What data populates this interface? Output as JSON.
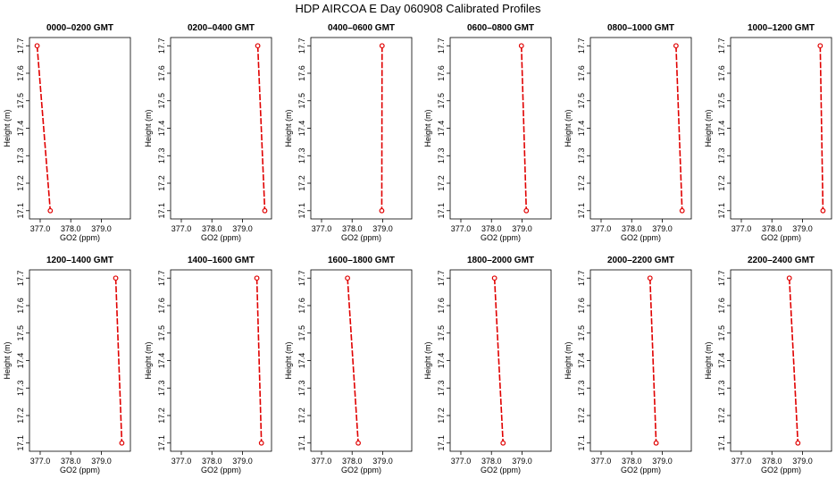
{
  "title": "HDP AIRCOA E  Day 060908  Calibrated Profiles",
  "axes": {
    "xlabel": "GO2 (ppm)",
    "ylabel": "Height (m)",
    "xticks": [
      "377.0",
      "378.0",
      "379.0"
    ],
    "yticks": [
      "17.1",
      "17.2",
      "17.3",
      "17.4",
      "17.5",
      "17.6",
      "17.7"
    ]
  },
  "colors": {
    "series": "#e00000",
    "axis": "#000000",
    "background": "#ffffff"
  },
  "chart_data": [
    {
      "type": "line",
      "title": "0000–0200 GMT",
      "xlim": [
        376.65,
        379.95
      ],
      "ylim": [
        17.07,
        17.73
      ],
      "x": [
        376.9,
        377.33
      ],
      "y": [
        17.7,
        17.1
      ]
    },
    {
      "type": "line",
      "title": "0200–0400 GMT",
      "xlim": [
        376.65,
        379.95
      ],
      "ylim": [
        17.07,
        17.73
      ],
      "x": [
        379.5,
        379.73
      ],
      "y": [
        17.7,
        17.1
      ]
    },
    {
      "type": "line",
      "title": "0400–0600 GMT",
      "xlim": [
        376.65,
        379.95
      ],
      "ylim": [
        17.07,
        17.73
      ],
      "x": [
        378.98,
        378.97
      ],
      "y": [
        17.7,
        17.1
      ]
    },
    {
      "type": "line",
      "title": "0600–0800 GMT",
      "xlim": [
        376.65,
        379.95
      ],
      "ylim": [
        17.07,
        17.73
      ],
      "x": [
        378.98,
        379.14
      ],
      "y": [
        17.7,
        17.1
      ]
    },
    {
      "type": "line",
      "title": "0800–1000 GMT",
      "xlim": [
        376.65,
        379.95
      ],
      "ylim": [
        17.07,
        17.73
      ],
      "x": [
        379.45,
        379.65
      ],
      "y": [
        17.7,
        17.1
      ]
    },
    {
      "type": "line",
      "title": "1000–1200 GMT",
      "xlim": [
        376.65,
        379.95
      ],
      "ylim": [
        17.07,
        17.73
      ],
      "x": [
        379.58,
        379.67
      ],
      "y": [
        17.7,
        17.1
      ]
    },
    {
      "type": "line",
      "title": "1200–1400 GMT",
      "xlim": [
        376.65,
        379.95
      ],
      "ylim": [
        17.07,
        17.73
      ],
      "x": [
        379.47,
        379.67
      ],
      "y": [
        17.7,
        17.1
      ]
    },
    {
      "type": "line",
      "title": "1400–1600 GMT",
      "xlim": [
        376.65,
        379.95
      ],
      "ylim": [
        17.07,
        17.73
      ],
      "x": [
        379.47,
        379.62
      ],
      "y": [
        17.7,
        17.1
      ]
    },
    {
      "type": "line",
      "title": "1600–1800 GMT",
      "xlim": [
        376.65,
        379.95
      ],
      "ylim": [
        17.07,
        17.73
      ],
      "x": [
        377.85,
        378.2
      ],
      "y": [
        17.7,
        17.1
      ]
    },
    {
      "type": "line",
      "title": "1800–2000 GMT",
      "xlim": [
        376.65,
        379.95
      ],
      "ylim": [
        17.07,
        17.73
      ],
      "x": [
        378.1,
        378.38
      ],
      "y": [
        17.7,
        17.1
      ]
    },
    {
      "type": "line",
      "title": "2000–2200 GMT",
      "xlim": [
        376.65,
        379.95
      ],
      "ylim": [
        17.07,
        17.73
      ],
      "x": [
        378.6,
        378.8
      ],
      "y": [
        17.7,
        17.1
      ]
    },
    {
      "type": "line",
      "title": "2200–2400 GMT",
      "xlim": [
        376.65,
        379.95
      ],
      "ylim": [
        17.07,
        17.73
      ],
      "x": [
        378.57,
        378.85
      ],
      "y": [
        17.7,
        17.1
      ]
    }
  ]
}
